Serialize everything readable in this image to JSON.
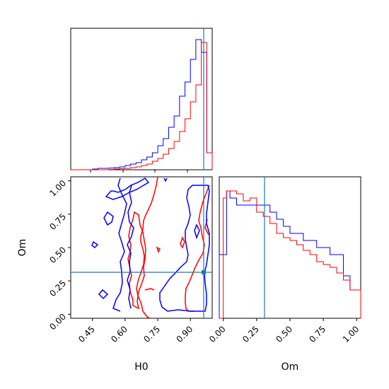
{
  "chart_data": {
    "type": "corner",
    "parameters": [
      "H0",
      "Om"
    ],
    "truths": {
      "H0": 0.98,
      "Om": 0.3
    },
    "series_colors": [
      "#0000ff",
      "#ff0000"
    ],
    "truth_color": "#1f77b4",
    "panels": [
      {
        "id": "hist-H0",
        "type": "histogram",
        "xlim": [
          0.35,
          1.0
        ],
        "bin_edges": [
          0.35,
          0.375,
          0.4,
          0.425,
          0.45,
          0.475,
          0.5,
          0.525,
          0.55,
          0.575,
          0.6,
          0.625,
          0.65,
          0.675,
          0.7,
          0.725,
          0.75,
          0.775,
          0.8,
          0.825,
          0.85,
          0.875,
          0.9,
          0.925,
          0.95,
          0.975,
          1.0
        ],
        "series": [
          {
            "values": [
              0,
              0,
              0,
              0,
              0.5,
              1,
              1,
              1.2,
              1.5,
              2,
              3,
              4,
              5,
              7,
              9,
              12,
              17,
              22,
              30,
              38,
              52,
              62,
              78,
              92,
              83,
              12
            ]
          },
          {
            "values": [
              0,
              0,
              0,
              0,
              0,
              0,
              0,
              0.2,
              0.5,
              0.8,
              1,
              1.5,
              2,
              3,
              4,
              6,
              8,
              11,
              15,
              20,
              27,
              36,
              48,
              60,
              90,
              12
            ]
          }
        ],
        "ylim": [
          0,
          100
        ]
      },
      {
        "id": "hist-Om",
        "type": "histogram",
        "xlim": [
          -0.03,
          1.03
        ],
        "xticks": [
          "0.00",
          "0.25",
          "0.50",
          "0.75",
          "1.00"
        ],
        "xtick_values": [
          0,
          0.25,
          0.5,
          0.75,
          1.0
        ],
        "bin_edges": [
          -0.03,
          0.0,
          0.025,
          0.05,
          0.1,
          0.15,
          0.2,
          0.25,
          0.3,
          0.35,
          0.4,
          0.45,
          0.5,
          0.55,
          0.6,
          0.65,
          0.7,
          0.75,
          0.8,
          0.85,
          0.9,
          0.95,
          1.0,
          1.03
        ],
        "series": [
          {
            "values": [
              45,
              45,
              90,
              85,
              80,
              80,
              80,
              80,
              80,
              75,
              70,
              65,
              60,
              60,
              55,
              55,
              50,
              50,
              45,
              45,
              30,
              20,
              20
            ]
          },
          {
            "values": [
              0,
              85,
              90,
              90,
              88,
              83,
              85,
              75,
              72,
              67,
              60,
              57,
              55,
              52,
              48,
              45,
              40,
              38,
              36,
              32,
              27,
              20,
              20
            ]
          }
        ],
        "ylim": [
          0,
          100
        ]
      },
      {
        "id": "contour-H0-Om",
        "type": "contour",
        "xlim": [
          0.35,
          1.0
        ],
        "ylim": [
          -0.03,
          1.03
        ],
        "xticks": [
          "0.45",
          "0.60",
          "0.75",
          "0.90"
        ],
        "xtick_values": [
          0.45,
          0.6,
          0.75,
          0.9
        ],
        "yticks": [
          "0.00",
          "0.25",
          "0.50",
          "0.75",
          "1.00"
        ],
        "ytick_values": [
          0,
          0.25,
          0.5,
          0.75,
          1.0
        ]
      }
    ],
    "xlabels": [
      "H0",
      "Om"
    ],
    "ylabels": [
      "",
      "Om"
    ]
  }
}
